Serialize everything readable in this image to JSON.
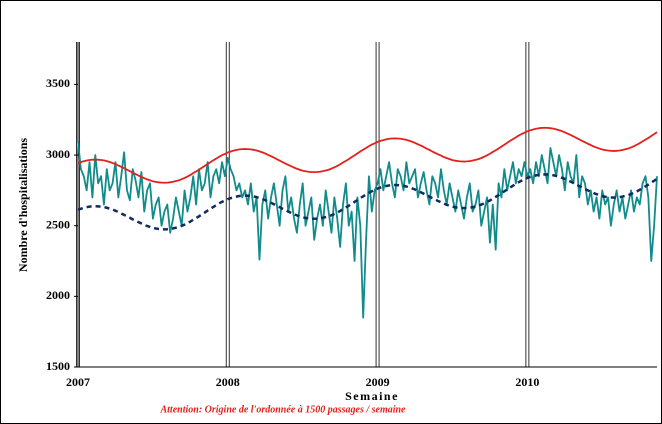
{
  "chart_data": {
    "type": "line",
    "ylabel": "Nombre d'hospitalisations",
    "xlabel": "Semaine",
    "annotation": "Attention: Origine de l'ordonnée à 1500 passages / semaine",
    "ylim": [
      1500,
      3800
    ],
    "yticks": [
      1500,
      2000,
      2500,
      3000,
      3500
    ],
    "grid": false,
    "categories": [
      "2007",
      null,
      null,
      null,
      null,
      null,
      null,
      null,
      null,
      null,
      null,
      null,
      null,
      null,
      null,
      null,
      null,
      null,
      null,
      null,
      null,
      null,
      null,
      null,
      null,
      null,
      null,
      null,
      null,
      null,
      null,
      null,
      null,
      null,
      null,
      null,
      null,
      null,
      null,
      null,
      null,
      null,
      null,
      null,
      null,
      null,
      null,
      null,
      null,
      null,
      null,
      null,
      "2008",
      null,
      null,
      null,
      null,
      null,
      null,
      null,
      null,
      null,
      null,
      null,
      null,
      null,
      null,
      null,
      null,
      null,
      null,
      null,
      null,
      null,
      null,
      null,
      null,
      null,
      null,
      null,
      null,
      null,
      null,
      null,
      null,
      null,
      null,
      null,
      null,
      null,
      null,
      null,
      null,
      null,
      null,
      null,
      null,
      null,
      null,
      null,
      null,
      null,
      null,
      null,
      "2009",
      null,
      null,
      null,
      null,
      null,
      null,
      null,
      null,
      null,
      null,
      null,
      null,
      null,
      null,
      null,
      null,
      null,
      null,
      null,
      null,
      null,
      null,
      null,
      null,
      null,
      null,
      null,
      null,
      null,
      null,
      null,
      null,
      null,
      null,
      null,
      null,
      null,
      null,
      null,
      null,
      null,
      null,
      null,
      null,
      null,
      null,
      null,
      null,
      null,
      null,
      null,
      "2010",
      null,
      null,
      null,
      null,
      null,
      null,
      null,
      null,
      null,
      null,
      null,
      null,
      null,
      null,
      null,
      null,
      null,
      null,
      null,
      null,
      null,
      null,
      null,
      null,
      null,
      null,
      null,
      null,
      null,
      null,
      null,
      null,
      null,
      null,
      null,
      null,
      null,
      null,
      null,
      null,
      null,
      null,
      null,
      null,
      null
    ],
    "series": [
      {
        "color": "#118b8b",
        "dash": false,
        "values": [
          3100,
          2900,
          2850,
          2750,
          2950,
          2700,
          3000,
          2800,
          2850,
          2650,
          2900,
          2750,
          2800,
          2950,
          2700,
          2850,
          3020,
          2750,
          2680,
          2900,
          2820,
          2700,
          2880,
          2600,
          2750,
          2800,
          2550,
          2650,
          2700,
          2500,
          2600,
          2650,
          2450,
          2550,
          2700,
          2600,
          2500,
          2750,
          2600,
          2700,
          2850,
          2650,
          2900,
          2750,
          2800,
          2950,
          2700,
          2850,
          2900,
          2800,
          2950,
          2850,
          2980,
          2900,
          2850,
          2750,
          2800,
          2700,
          2750,
          2650,
          2800,
          2600,
          2700,
          2260,
          2650,
          2750,
          2550,
          2700,
          2800,
          2650,
          2500,
          2750,
          2850,
          2600,
          2700,
          2550,
          2450,
          2650,
          2800,
          2500,
          2600,
          2700,
          2400,
          2550,
          2650,
          2500,
          2750,
          2600,
          2450,
          2700,
          2550,
          2350,
          2650,
          2800,
          2500,
          2600,
          2250,
          2700,
          2500,
          1850,
          2400,
          2850,
          2600,
          2750,
          2800,
          2900,
          2750,
          2850,
          2950,
          2800,
          2700,
          2900,
          2850,
          2750,
          2950,
          2800,
          2850,
          2900,
          2700,
          2800,
          2880,
          2750,
          2650,
          2850,
          2800,
          2700,
          2900,
          2750,
          2650,
          2800,
          2700,
          2600,
          2750,
          2650,
          2550,
          2700,
          2800,
          2600,
          2650,
          2750,
          2500,
          2600,
          2700,
          2380,
          2650,
          2330,
          2800,
          2700,
          2900,
          2750,
          2850,
          2950,
          2800,
          2900,
          2850,
          2950,
          2850,
          2900,
          2800,
          2950,
          2850,
          3000,
          2900,
          2800,
          3050,
          2950,
          2850,
          3000,
          2900,
          2750,
          2950,
          2850,
          2800,
          3000,
          2700,
          2850,
          2800,
          2650,
          2750,
          2600,
          2700,
          2550,
          2750,
          2650,
          2700,
          2500,
          2650,
          2750,
          2600,
          2700,
          2550,
          2650,
          2750,
          2600,
          2700,
          2650,
          2800,
          2850,
          2700,
          2250,
          2500,
          2850
        ]
      },
      {
        "color": "#e3211c",
        "dash": false,
        "values": [
          2943,
          2950,
          2956,
          2961,
          2965,
          2967,
          2968,
          2967,
          2965,
          2962,
          2957,
          2951,
          2944,
          2936,
          2926,
          2917,
          2907,
          2896,
          2886,
          2875,
          2865,
          2855,
          2846,
          2836,
          2828,
          2821,
          2814,
          2810,
          2807,
          2805,
          2804,
          2805,
          2807,
          2811,
          2816,
          2821,
          2829,
          2838,
          2848,
          2859,
          2872,
          2884,
          2896,
          2910,
          2923,
          2937,
          2950,
          2963,
          2975,
          2988,
          2999,
          3008,
          3018,
          3025,
          3031,
          3036,
          3040,
          3042,
          3043,
          3042,
          3040,
          3037,
          3032,
          3026,
          3019,
          3011,
          3001,
          2992,
          2982,
          2971,
          2961,
          2950,
          2940,
          2930,
          2921,
          2911,
          2903,
          2896,
          2889,
          2885,
          2882,
          2880,
          2879,
          2880,
          2882,
          2886,
          2891,
          2896,
          2904,
          2913,
          2923,
          2934,
          2947,
          2959,
          2971,
          2985,
          2998,
          3012,
          3025,
          3038,
          3050,
          3063,
          3074,
          3083,
          3093,
          3100,
          3106,
          3111,
          3115,
          3117,
          3118,
          3117,
          3115,
          3112,
          3107,
          3101,
          3094,
          3086,
          3076,
          3067,
          3057,
          3046,
          3036,
          3025,
          3015,
          3005,
          2996,
          2986,
          2978,
          2971,
          2964,
          2960,
          2957,
          2955,
          2954,
          2955,
          2957,
          2961,
          2966,
          2971,
          2979,
          2988,
          2998,
          3009,
          3022,
          3034,
          3046,
          3060,
          3073,
          3087,
          3100,
          3113,
          3125,
          3138,
          3149,
          3158,
          3168,
          3175,
          3181,
          3186,
          3190,
          3192,
          3193,
          3192,
          3190,
          3187,
          3182,
          3176,
          3169,
          3161,
          3151,
          3142,
          3132,
          3121,
          3111,
          3100,
          3090,
          3080,
          3071,
          3061,
          3053,
          3046,
          3039,
          3035,
          3032,
          3030,
          3029,
          3030,
          3032,
          3036,
          3041,
          3046,
          3054,
          3063,
          3073,
          3084,
          3097,
          3109,
          3121,
          3135,
          3148,
          3162
        ]
      },
      {
        "color": "#0e2c5e",
        "dash": true,
        "values": [
          2613,
          2620,
          2626,
          2631,
          2635,
          2637,
          2638,
          2637,
          2635,
          2632,
          2627,
          2621,
          2614,
          2606,
          2596,
          2587,
          2577,
          2566,
          2556,
          2545,
          2535,
          2525,
          2516,
          2506,
          2498,
          2491,
          2484,
          2480,
          2477,
          2475,
          2474,
          2475,
          2477,
          2481,
          2486,
          2491,
          2499,
          2508,
          2518,
          2529,
          2542,
          2554,
          2566,
          2580,
          2593,
          2607,
          2620,
          2633,
          2645,
          2658,
          2669,
          2678,
          2688,
          2695,
          2701,
          2706,
          2710,
          2712,
          2713,
          2712,
          2710,
          2707,
          2702,
          2696,
          2689,
          2681,
          2671,
          2662,
          2652,
          2641,
          2631,
          2620,
          2610,
          2600,
          2591,
          2581,
          2573,
          2566,
          2559,
          2555,
          2552,
          2550,
          2549,
          2550,
          2552,
          2556,
          2561,
          2566,
          2574,
          2583,
          2593,
          2604,
          2617,
          2629,
          2641,
          2655,
          2668,
          2682,
          2695,
          2708,
          2720,
          2733,
          2744,
          2753,
          2763,
          2770,
          2776,
          2781,
          2785,
          2787,
          2788,
          2787,
          2785,
          2782,
          2777,
          2771,
          2764,
          2756,
          2746,
          2737,
          2727,
          2716,
          2706,
          2695,
          2685,
          2675,
          2666,
          2656,
          2648,
          2641,
          2634,
          2630,
          2627,
          2625,
          2624,
          2625,
          2627,
          2631,
          2636,
          2641,
          2649,
          2658,
          2668,
          2679,
          2692,
          2704,
          2716,
          2730,
          2743,
          2757,
          2770,
          2783,
          2795,
          2808,
          2819,
          2828,
          2838,
          2845,
          2851,
          2856,
          2860,
          2862,
          2863,
          2862,
          2860,
          2857,
          2852,
          2846,
          2839,
          2831,
          2821,
          2812,
          2802,
          2791,
          2781,
          2770,
          2760,
          2750,
          2741,
          2731,
          2723,
          2716,
          2709,
          2705,
          2702,
          2700,
          2699,
          2700,
          2702,
          2706,
          2711,
          2716,
          2724,
          2733,
          2743,
          2754,
          2767,
          2779,
          2791,
          2805,
          2818,
          2832
        ]
      }
    ]
  }
}
